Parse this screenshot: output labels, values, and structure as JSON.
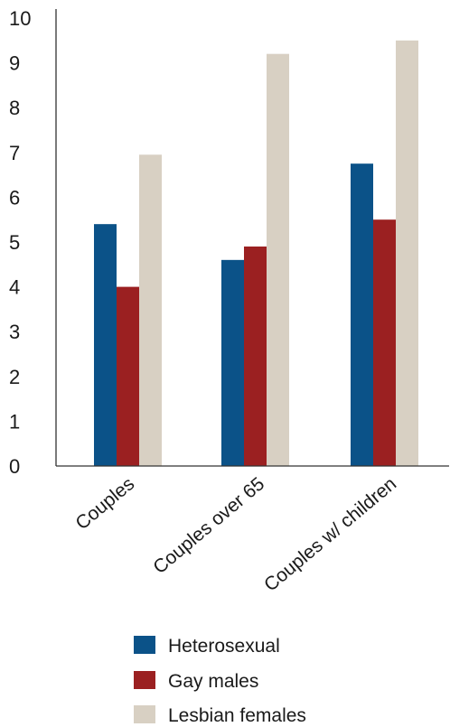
{
  "chart_data": {
    "type": "bar",
    "categories": [
      "Couples",
      "Couples over 65",
      "Couples w/ children"
    ],
    "series": [
      {
        "name": "Heterosexual",
        "color": "#0b5288",
        "values": [
          5.4,
          4.6,
          6.75
        ]
      },
      {
        "name": "Gay males",
        "color": "#9b2021",
        "values": [
          4.0,
          4.9,
          5.5
        ]
      },
      {
        "name": "Lesbian females",
        "color": "#d8d0c3",
        "values": [
          6.95,
          9.2,
          9.5
        ]
      }
    ],
    "title": "",
    "xlabel": "",
    "ylabel": "",
    "ylim": [
      0,
      10
    ],
    "yticks": [
      "0",
      "1",
      "2",
      "3",
      "4",
      "5",
      "6",
      "7",
      "8",
      "9",
      "10"
    ],
    "grid": false,
    "legend_position": "bottom"
  }
}
